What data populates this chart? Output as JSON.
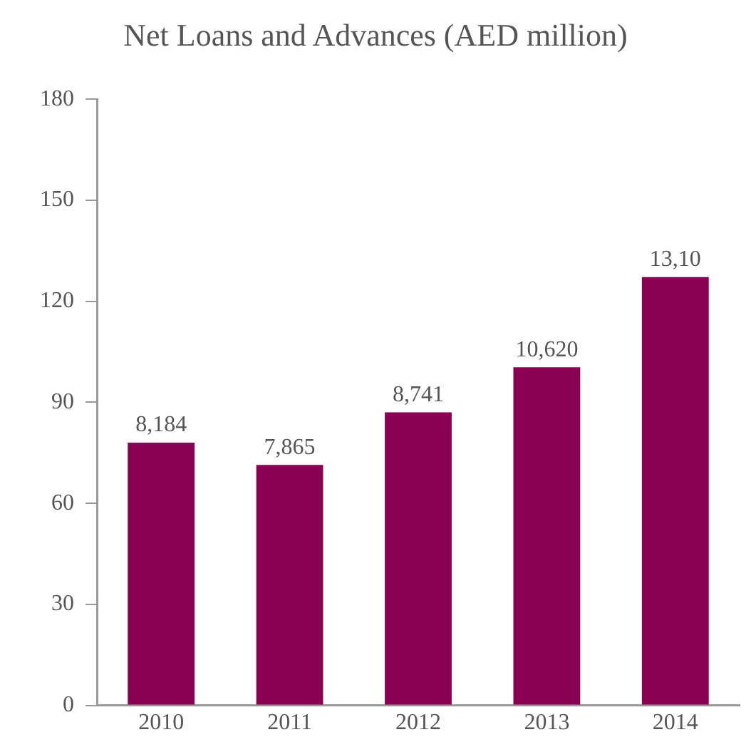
{
  "chart_data": {
    "type": "bar",
    "title": "Net Loans and Advances (AED million)",
    "categories": [
      "2010",
      "2011",
      "2012",
      "2013",
      "2014"
    ],
    "values": [
      78,
      71.4,
      87,
      100.4,
      127.2
    ],
    "annotations": [
      {
        "text": "8,184",
        "x": "2010",
        "y": 78
      },
      {
        "text": "7,865",
        "x": "2011",
        "y": 71.4
      },
      {
        "text": "8,741",
        "x": "2012",
        "y": 87
      },
      {
        "text": "10,620",
        "x": "2013",
        "y": 100.4
      },
      {
        "text": "13,10",
        "x": "2014",
        "y": 127.2
      }
    ],
    "color": "#8a0052",
    "ylim": [
      0,
      180
    ],
    "yticks": [
      0,
      30,
      60,
      90,
      120,
      150,
      180
    ],
    "grid": false,
    "legend": false
  }
}
